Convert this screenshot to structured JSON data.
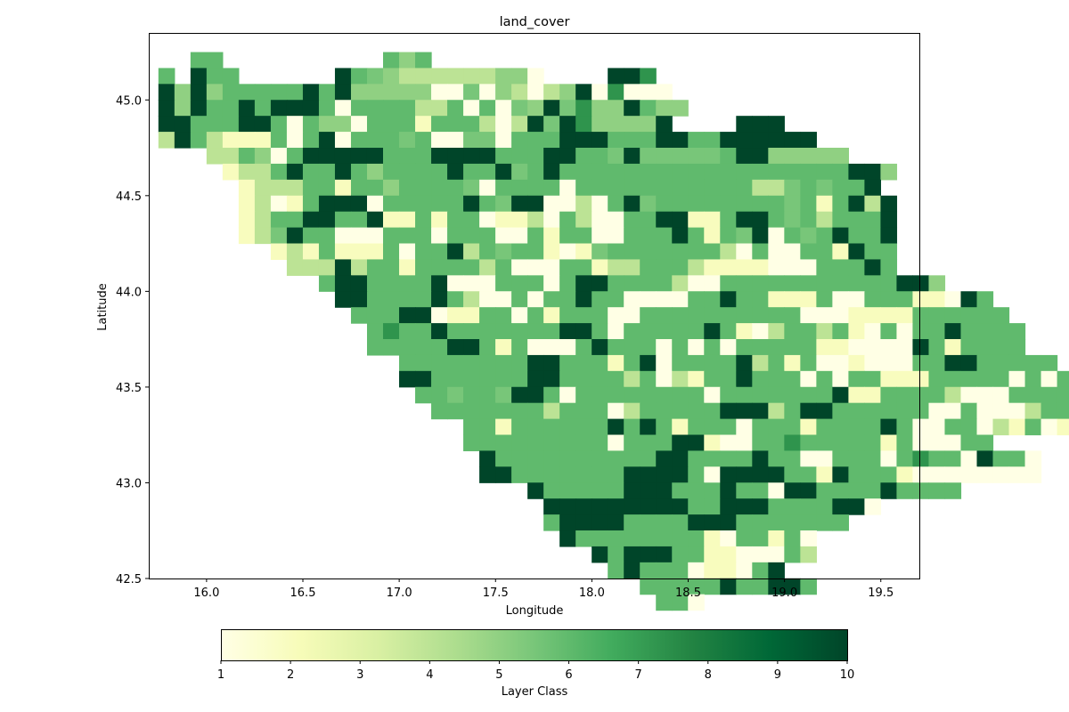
{
  "chart_data": {
    "type": "heatmap",
    "title": "land_cover",
    "xlabel": "Longitude",
    "ylabel": "Latitude",
    "colorbar_label": "Layer Class",
    "colormap": "YlGn",
    "colormap_stops": [
      "#ffffe5",
      "#f7fcb9",
      "#d9f0a3",
      "#addd8e",
      "#78c679",
      "#41ab5d",
      "#238443",
      "#006837",
      "#004529"
    ],
    "value_range": [
      1,
      10
    ],
    "xlim": [
      15.7,
      19.7
    ],
    "ylim": [
      42.5,
      45.35
    ],
    "x_ticks": [
      16.0,
      16.5,
      17.0,
      17.5,
      18.0,
      18.5,
      19.0,
      19.5
    ],
    "x_tick_labels": [
      "16.0",
      "16.5",
      "17.0",
      "17.5",
      "18.0",
      "18.5",
      "19.0",
      "19.5"
    ],
    "y_ticks": [
      42.5,
      43.0,
      43.5,
      44.0,
      44.5,
      45.0
    ],
    "y_tick_labels": [
      "42.5",
      "43.0",
      "43.5",
      "44.0",
      "44.5",
      "45.0"
    ],
    "colorbar_ticks": [
      1,
      2,
      3,
      4,
      5,
      6,
      7,
      8,
      9,
      10
    ],
    "colorbar_tick_labels": [
      "1",
      "2",
      "3",
      "4",
      "5",
      "6",
      "7",
      "8",
      "9",
      "10"
    ],
    "grid": false,
    "cell_size_deg": 0.0833,
    "grid_origin": {
      "lon_west": 15.75,
      "lat_north": 45.25
    },
    "row_start_col": [
      2,
      0,
      0,
      0,
      0,
      0,
      3,
      4,
      5,
      5,
      5,
      5,
      7,
      8,
      10,
      11,
      12,
      13,
      13,
      15,
      15,
      16,
      17,
      19,
      19,
      20,
      20,
      23,
      24,
      24,
      25,
      27,
      28,
      30,
      31
    ],
    "rows": [
      "6600000000006460000000000000000000000000000000",
      "6096600000096543333334410000997000000000000000",
      "9494666669694444411514313491711100000000000000",
      "9496696999616666336161549574496440000000000000",
      "9966699616441666266631395974444980009990000000",
      "3963222616916665611551666999666996699999900000",
      "3364169999966699996669966595555569944444000000",
      "2336966964666696695696666666666666666669940000",
      "2333662664666651666616666666666633565669000000",
      "2312699916666696599113169566666666562693900000",
      "2366996692262661223163116699226996563666900000",
      "2359661116661666116266116669626591656966900000",
      "2326222616693656621256666666316116629660000000",
      "3339366266663611166233666322221116669600000000",
      "6996666911166616996666311666666666669940000000",
      "9966669631161669661111669662226116662219600000",
      "6669912266162666116666666666111222266666600000",
      "6766966666669961666669621366362161669666600000",
      "6666699626111696661616166666221111962666600000",
      "6666666699666269166669362611211166996666600000",
      "9966666699666636132669666161662226666616160000",
      "6656659961666666661666666692266663111666666000",
      "6666666366613666669993699666666116111366366000",
      "6626666669696266616662666696116613261266161000",
      "6666666661666992116676666626111660000000000000",
      "9666666666699666696611666167661966100000000000",
      "9966666669999619999662966621111111100000000000",
      "9666669996669661996666966660000000000000000000",
      "9999999996699966669910000000000000000000000000",
      "6999966669996666666000000000000000000000000000",
      "9666666662166261000000000000000000000000000000",
      "9699966221116300000000000000000000000000000000",
      "6966612216900000000000000000000000000000000000",
      "6666696699600000000000000000000000000000000000",
      "6610000000000000000000000000000000000000000000"
    ]
  }
}
